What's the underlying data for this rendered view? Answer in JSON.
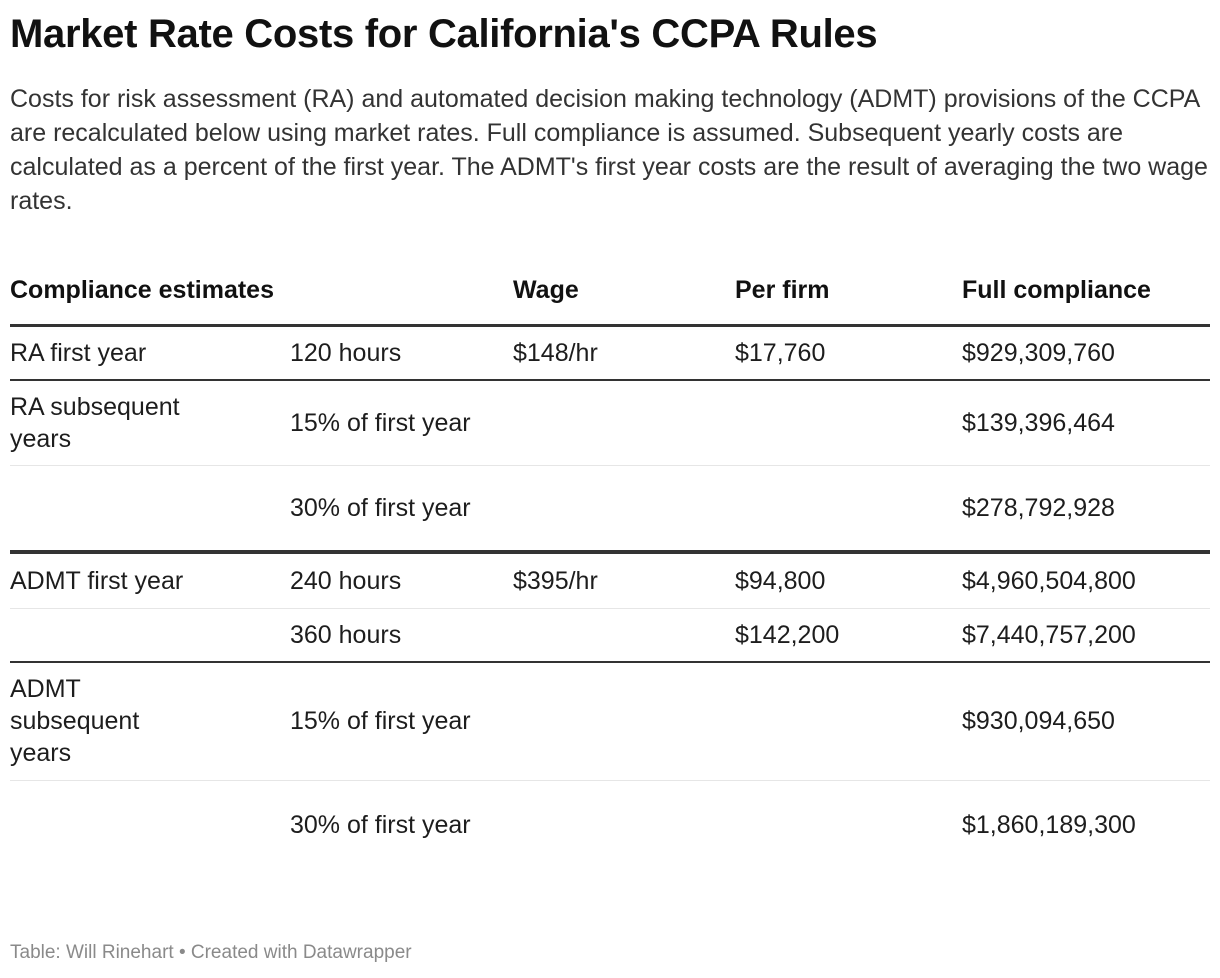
{
  "title": "Market Rate Costs for California's CCPA Rules",
  "description": "Costs for risk assessment (RA) and automated decision making technology (ADMT) provisions of the CCPA are recalculated below using market rates. Full compliance is assumed. Subsequent yearly costs are calculated as a percent of the first year. The ADMT's first year costs are the result of averaging the two wage rates.",
  "chart_data": {
    "type": "table",
    "columns": [
      "Compliance estimates",
      "",
      "Wage",
      "Per firm",
      "Full compliance"
    ],
    "rows": [
      [
        "RA first year",
        "120 hours",
        "$148/hr",
        "$17,760",
        "$929,309,760"
      ],
      [
        "RA subsequent years",
        "15% of first year",
        "",
        "",
        "$139,396,464"
      ],
      [
        "",
        "30% of first year",
        "",
        "",
        "$278,792,928"
      ],
      [
        "ADMT first year",
        "240 hours",
        "$395/hr",
        "$94,800",
        "$4,960,504,800"
      ],
      [
        "",
        "360 hours",
        "",
        "$142,200",
        "$7,440,757,200"
      ],
      [
        "ADMT subsequent years",
        "15% of first year",
        "",
        "",
        "$930,094,650"
      ],
      [
        "",
        "30% of first year",
        "",
        "",
        "$1,860,189,300"
      ]
    ]
  },
  "footer": "Table: Will Rinehart • Created with Datawrapper"
}
